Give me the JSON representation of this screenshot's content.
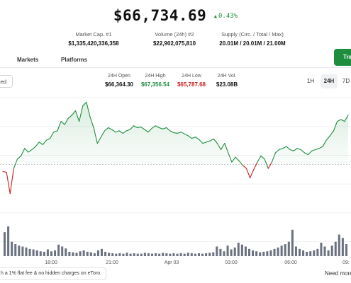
{
  "header": {
    "price": "$66,734.69",
    "change": "0.43%",
    "change_color": "#1e8e3e"
  },
  "stats": [
    {
      "label": "Market Cap. #1",
      "value": "$1,335,420,336,358"
    },
    {
      "label": "Volume (24h) #2",
      "value": "$22,902,075,810"
    },
    {
      "label": "Supply (Circ. / Total / Max)",
      "value": "20.01M / 20.01M / 21.00M"
    }
  ],
  "tabs": [
    "Markets",
    "Platforms"
  ],
  "trade_button": "Tra",
  "mode_button": "ced",
  "ohlc": [
    {
      "label": "24H Open",
      "value": "$66,364.30",
      "color": "#111111"
    },
    {
      "label": "24H High",
      "value": "$67,356.54",
      "color": "#1e8e3e"
    },
    {
      "label": "24H Low",
      "value": "$65,787.68",
      "color": "#c5221f"
    },
    {
      "label": "24H Vol.",
      "value": "$23.08B",
      "color": "#111111"
    }
  ],
  "ranges": [
    "1H",
    "24H",
    "7D"
  ],
  "active_range": "24H",
  "chart_data": {
    "type": "area",
    "x_tick_labels": [
      "18:00",
      "21:00",
      "Apr 03",
      "03:00",
      "06:00",
      "09:"
    ],
    "price_series": [
      66250,
      66240,
      65900,
      66300,
      66450,
      66500,
      66620,
      66560,
      66600,
      66650,
      66720,
      66680,
      66750,
      66780,
      66880,
      66900,
      67050,
      67000,
      67100,
      67150,
      67220,
      67050,
      67300,
      67356,
      67120,
      66950,
      66700,
      66800,
      66900,
      66950,
      66920,
      66880,
      66900,
      66860,
      66900,
      66920,
      66980,
      66950,
      66960,
      66920,
      66880,
      66940,
      66980,
      66950,
      66930,
      66950,
      66900,
      66870,
      66860,
      66880,
      66850,
      66820,
      66780,
      66800,
      66760,
      66700,
      66720,
      66740,
      66770,
      66700,
      66600,
      66700,
      66550,
      66400,
      66480,
      66420,
      66350,
      66300,
      66150,
      66280,
      66400,
      66500,
      66450,
      66300,
      66400,
      66550,
      66600,
      66620,
      66650,
      66600,
      66580,
      66620,
      66600,
      66550,
      66520,
      66580,
      66600,
      66620,
      66650,
      66750,
      66820,
      66900,
      67050,
      67080,
      67050,
      67150
    ],
    "baseline": 66364.3,
    "up_color": "#1e8e3e",
    "down_color": "#c5221f",
    "volume_series": [
      50,
      62,
      30,
      25,
      22,
      20,
      18,
      15,
      14,
      12,
      10,
      9,
      14,
      10,
      12,
      24,
      20,
      16,
      9,
      8,
      7,
      10,
      12,
      9,
      8,
      6,
      12,
      15,
      9,
      7,
      6,
      5,
      6,
      5,
      7,
      5,
      6,
      5,
      5,
      7,
      6,
      5,
      6,
      5,
      7,
      6,
      5,
      6,
      5,
      6,
      5,
      7,
      6,
      5,
      6,
      5,
      6,
      7,
      8,
      20,
      15,
      10,
      22,
      14,
      18,
      28,
      24,
      20,
      15,
      12,
      10,
      8,
      9,
      10,
      12,
      15,
      18,
      22,
      25,
      30,
      55,
      20,
      15,
      12,
      9,
      10,
      12,
      15,
      28,
      20,
      12,
      22,
      30,
      45,
      38,
      25
    ]
  },
  "footer": {
    "note": "h a 1% flat fee & no hidden charges on eToro.",
    "need_more": "Need more"
  }
}
